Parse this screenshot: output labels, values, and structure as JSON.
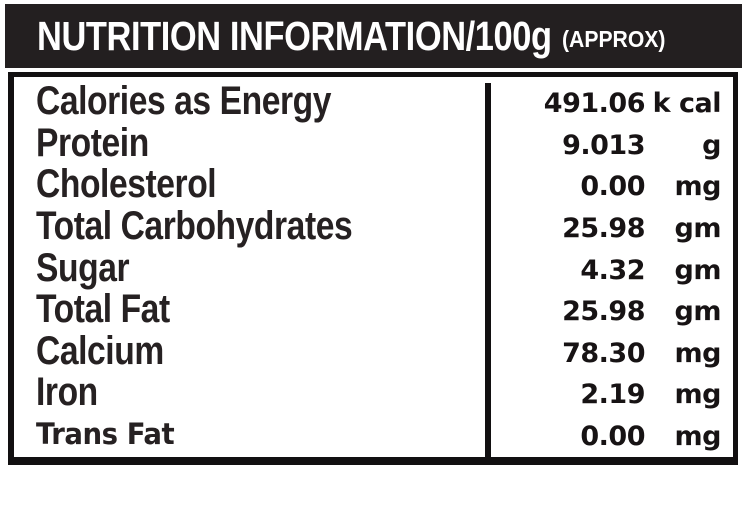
{
  "header": {
    "title": "NUTRITION INFORMATION/100g",
    "approx": "(APPROX)"
  },
  "table": {
    "rows": [
      {
        "label": "Calories as Energy",
        "value": "491.06",
        "unit": "k cal"
      },
      {
        "label": "Protein",
        "value": "9.013",
        "unit": "g"
      },
      {
        "label": "Cholesterol",
        "value": "0.00",
        "unit": "mg"
      },
      {
        "label": "Total Carbohydrates",
        "value": "25.98",
        "unit": "gm"
      },
      {
        "label": "Sugar",
        "value": "4.32",
        "unit": "gm"
      },
      {
        "label": "Total Fat",
        "value": "25.98",
        "unit": "gm"
      },
      {
        "label": "Calcium",
        "value": "78.30",
        "unit": "mg"
      },
      {
        "label": "Iron",
        "value": "2.19",
        "unit": "mg"
      },
      {
        "label": "Trans Fat",
        "value": "0.00",
        "unit": "mg"
      }
    ]
  },
  "colors": {
    "band_background": "#231f20",
    "text": "#231f20",
    "border": "#121011",
    "background": "#ffffff"
  }
}
